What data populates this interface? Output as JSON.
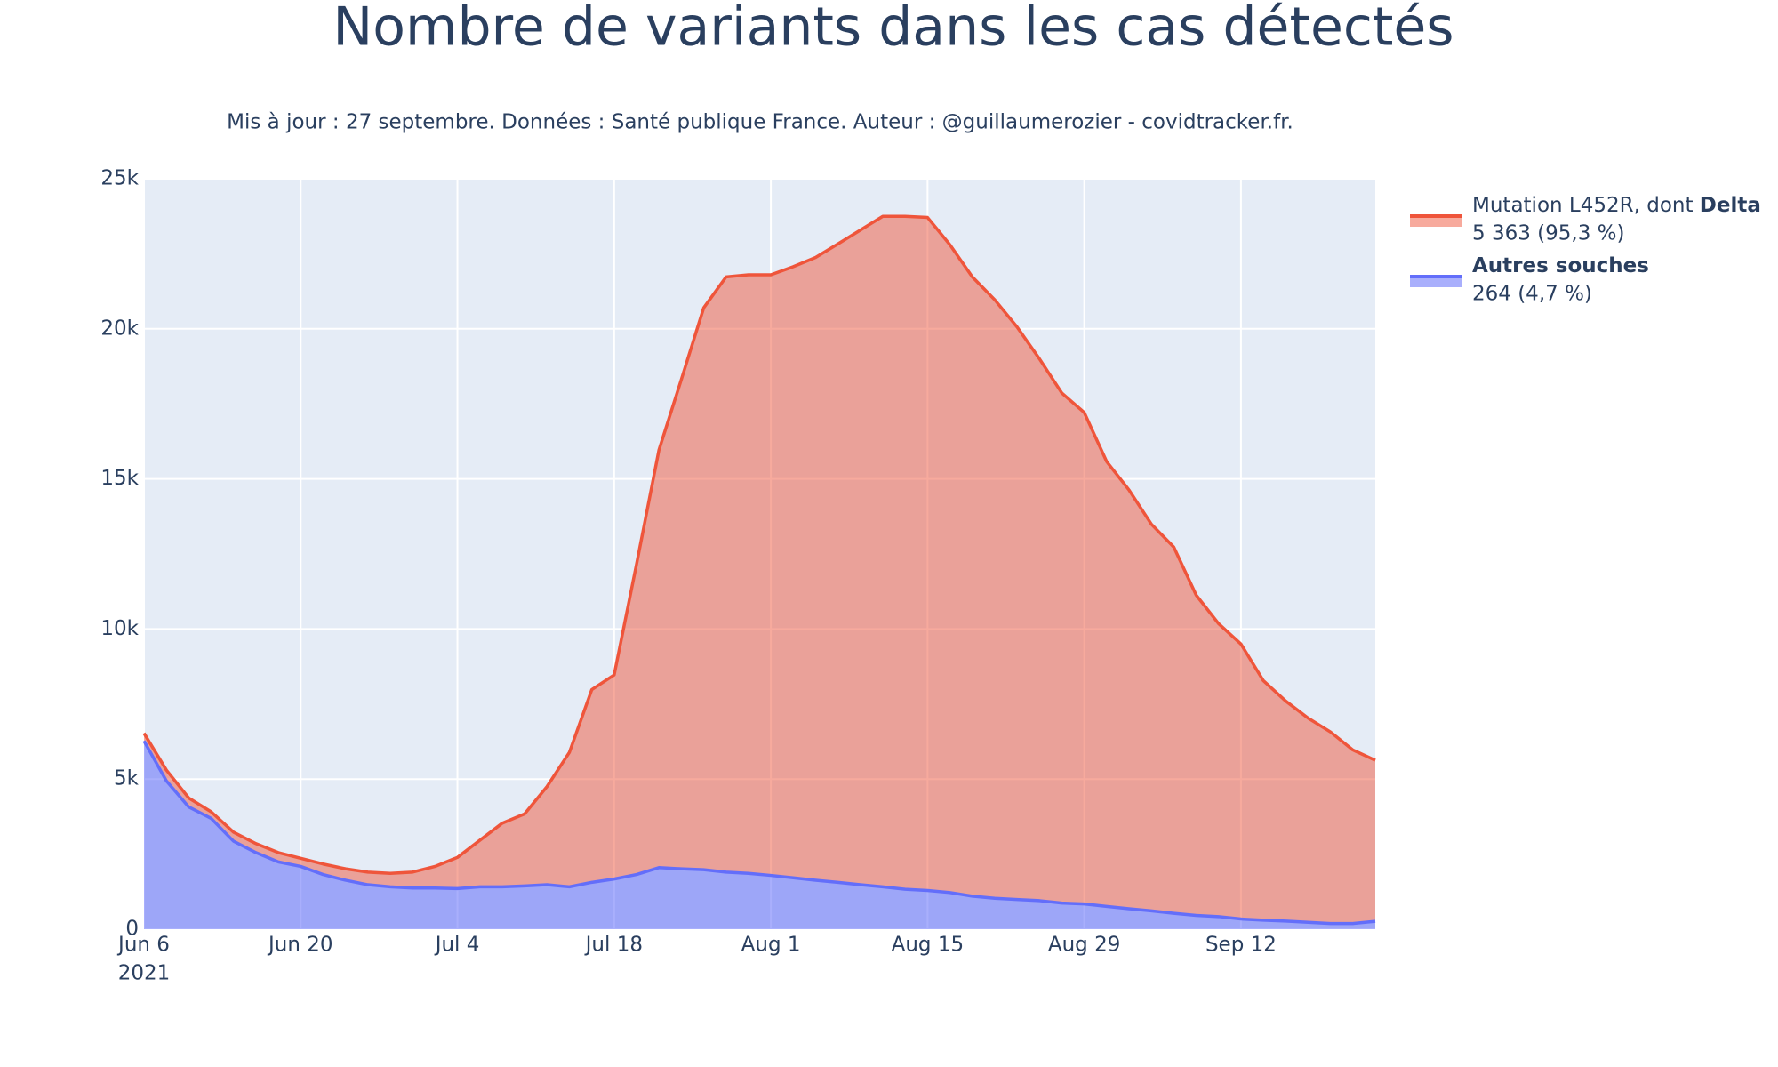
{
  "chart_data": {
    "type": "stacked_area",
    "title": "Nombre de variants dans les cas détectés",
    "subtitle": "Mis à jour : 27 septembre. Données : Santé publique France. Auteur : @guillaumerozier - covidtracker.fr.",
    "x": [
      "2021-06-06",
      "2021-06-08",
      "2021-06-10",
      "2021-06-12",
      "2021-06-14",
      "2021-06-16",
      "2021-06-18",
      "2021-06-20",
      "2021-06-22",
      "2021-06-24",
      "2021-06-26",
      "2021-06-28",
      "2021-06-30",
      "2021-07-02",
      "2021-07-04",
      "2021-07-06",
      "2021-07-08",
      "2021-07-10",
      "2021-07-12",
      "2021-07-14",
      "2021-07-16",
      "2021-07-18",
      "2021-07-20",
      "2021-07-22",
      "2021-07-24",
      "2021-07-26",
      "2021-07-28",
      "2021-07-30",
      "2021-08-01",
      "2021-08-03",
      "2021-08-05",
      "2021-08-07",
      "2021-08-09",
      "2021-08-11",
      "2021-08-13",
      "2021-08-15",
      "2021-08-17",
      "2021-08-19",
      "2021-08-21",
      "2021-08-23",
      "2021-08-25",
      "2021-08-27",
      "2021-08-29",
      "2021-08-31",
      "2021-09-02",
      "2021-09-04",
      "2021-09-06",
      "2021-09-08",
      "2021-09-10",
      "2021-09-12",
      "2021-09-14",
      "2021-09-16",
      "2021-09-18",
      "2021-09-20",
      "2021-09-22",
      "2021-09-24"
    ],
    "series": [
      {
        "name": "Mutation L452R, dont Delta",
        "legend_note": "5 363 (95,3 %)",
        "color": "#ef553b",
        "fill": "rgba(239,85,59,0.5)",
        "values": [
          260,
          360,
          300,
          220,
          300,
          300,
          310,
          270,
          350,
          380,
          420,
          450,
          530,
          720,
          1040,
          1550,
          2120,
          2400,
          3270,
          4480,
          6420,
          6800,
          10340,
          13910,
          16300,
          18720,
          19830,
          19940,
          20010,
          20360,
          20750,
          21270,
          21810,
          22340,
          22420,
          22420,
          21580,
          20630,
          19940,
          19070,
          18050,
          16990,
          16370,
          14820,
          13950,
          12880,
          12200,
          10670,
          9760,
          9160,
          7980,
          7330,
          6800,
          6380,
          5780,
          5363
        ]
      },
      {
        "name": "Autres souches",
        "legend_note": "264 (4,7 %)",
        "color": "#636efa",
        "fill": "rgba(99,110,250,0.55)",
        "values": [
          6270,
          4940,
          4070,
          3690,
          2930,
          2550,
          2240,
          2090,
          1820,
          1630,
          1480,
          1410,
          1370,
          1370,
          1350,
          1410,
          1410,
          1440,
          1480,
          1410,
          1560,
          1670,
          1820,
          2050,
          2010,
          1980,
          1900,
          1860,
          1790,
          1710,
          1630,
          1560,
          1480,
          1410,
          1330,
          1290,
          1220,
          1100,
          1030,
          990,
          950,
          870,
          840,
          760,
          680,
          610,
          530,
          460,
          420,
          340,
          300,
          270,
          230,
          190,
          190,
          264
        ]
      }
    ],
    "xlim": [
      "2021-06-06",
      "2021-09-24"
    ],
    "xticks": [
      {
        "value": "2021-06-06",
        "label": "Jun 6"
      },
      {
        "value": "2021-06-20",
        "label": "Jun 20"
      },
      {
        "value": "2021-07-04",
        "label": "Jul 4"
      },
      {
        "value": "2021-07-18",
        "label": "Jul 18"
      },
      {
        "value": "2021-08-01",
        "label": "Aug 1"
      },
      {
        "value": "2021-08-15",
        "label": "Aug 15"
      },
      {
        "value": "2021-08-29",
        "label": "Aug 29"
      },
      {
        "value": "2021-09-12",
        "label": "Sep 12"
      }
    ],
    "x_year": "2021",
    "ylim": [
      0,
      25000
    ],
    "yticks": [
      0,
      {
        "value": 5000,
        "label": "5k"
      },
      {
        "value": 10000,
        "label": "10k"
      },
      {
        "value": 15000,
        "label": "15k"
      },
      {
        "value": 20000,
        "label": "20k"
      },
      {
        "value": 25000,
        "label": "25k"
      }
    ],
    "grid": true,
    "plot_background": "#e5ecf6"
  }
}
